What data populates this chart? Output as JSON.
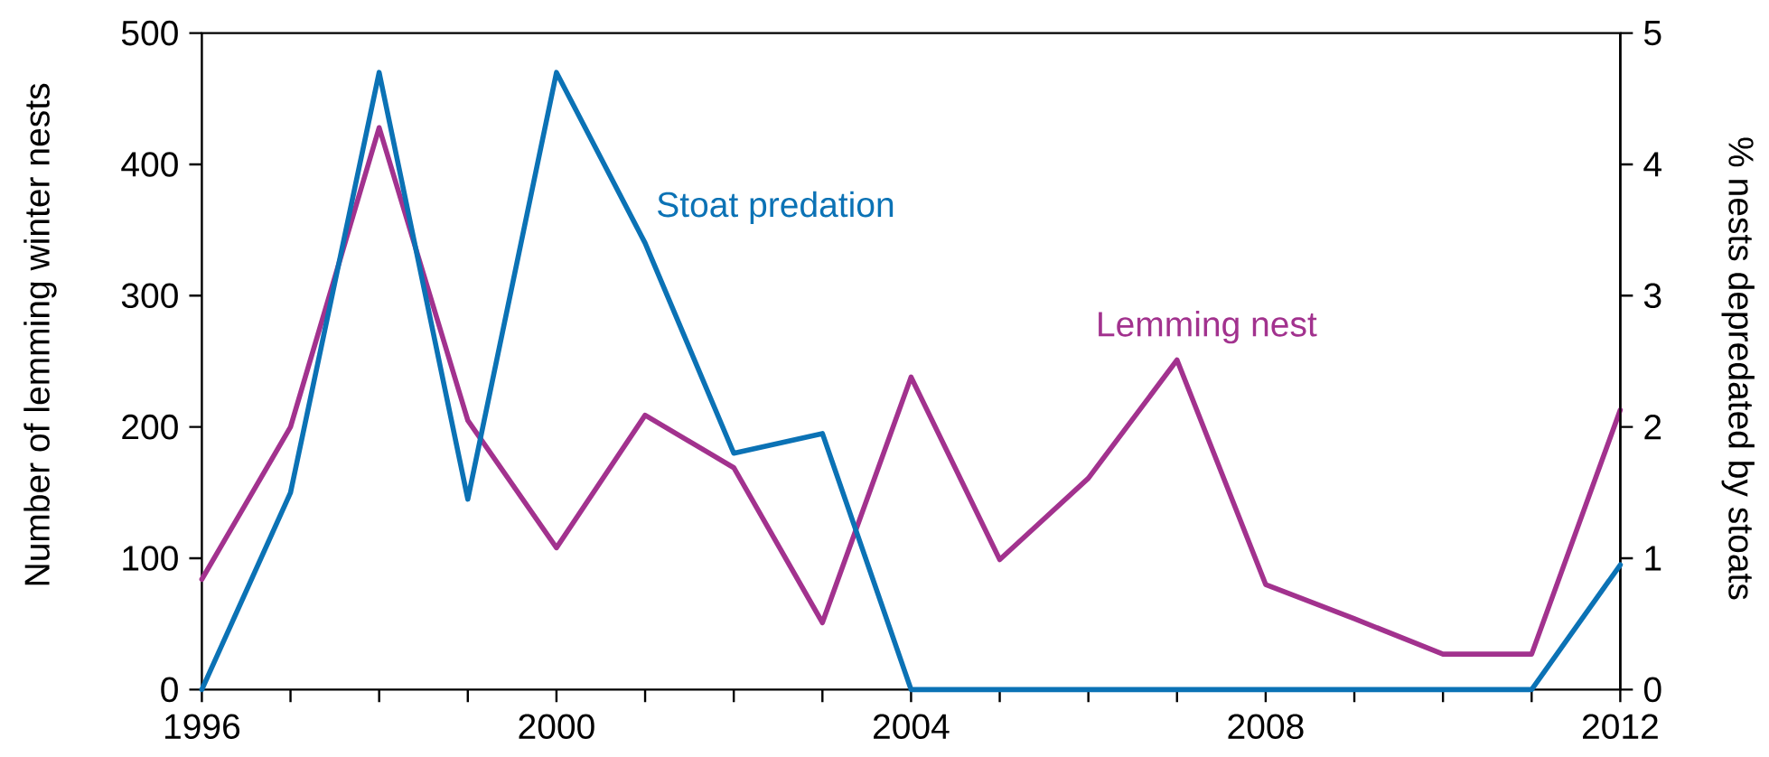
{
  "chart_data": {
    "type": "line",
    "ylabel": "Number of lemming winter nests",
    "y2label": "% nests depredated by stoats",
    "x": [
      1996,
      1997,
      1998,
      1999,
      2000,
      2001,
      2002,
      2003,
      2004,
      2005,
      2006,
      2007,
      2008,
      2009,
      2010,
      2011,
      2012
    ],
    "series": [
      {
        "name": "Lemming nest",
        "color": "#a2328e",
        "values": [
          84,
          200,
          428,
          205,
          108,
          209,
          169,
          51,
          238,
          99,
          161,
          251,
          80,
          54,
          27,
          27,
          213
        ]
      },
      {
        "name": "Stoat predation",
        "color": "#0b72b5",
        "axis": "y2",
        "values": [
          0,
          1.5,
          4.7,
          1.45,
          4.7,
          3.4,
          1.8,
          1.95,
          0,
          0,
          0,
          0,
          0,
          0,
          0,
          0,
          0.95
        ]
      }
    ],
    "xlim": [
      1996,
      2012
    ],
    "xticks": [
      1996,
      {
        "value": 1997,
        "label": null
      },
      {
        "value": 1998,
        "label": null
      },
      {
        "value": 1999,
        "label": null
      },
      2000,
      {
        "value": 2001,
        "label": null
      },
      {
        "value": 2002,
        "label": null
      },
      {
        "value": 2003,
        "label": null
      },
      2004,
      {
        "value": 2005,
        "label": null
      },
      {
        "value": 2006,
        "label": null
      },
      {
        "value": 2007,
        "label": null
      },
      2008,
      {
        "value": 2009,
        "label": null
      },
      {
        "value": 2010,
        "label": null
      },
      {
        "value": 2011,
        "label": null
      },
      2012
    ],
    "ylim": [
      0,
      500
    ],
    "yticks": [
      0,
      100,
      200,
      300,
      400,
      500
    ],
    "y2lim": [
      0,
      5
    ],
    "y2ticks": [
      0,
      1,
      2,
      3,
      4,
      5
    ]
  }
}
